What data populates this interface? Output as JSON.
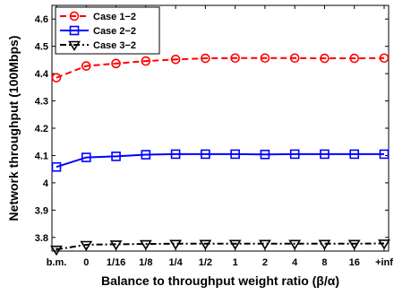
{
  "chart_data": {
    "type": "line",
    "categories": [
      "b.m.",
      "0",
      "1/16",
      "1/8",
      "1/4",
      "1/2",
      "1",
      "2",
      "4",
      "8",
      "16",
      "+inf"
    ],
    "ylabel": "Network throughput (100Mbps)",
    "xlabel": "Balance to throughput weight ratio (β/α)",
    "ylim": [
      3.75,
      4.65
    ],
    "yticks": [
      "3.8",
      "3.9",
      "4",
      "4.1",
      "4.2",
      "4.3",
      "4.4",
      "4.5",
      "4.6"
    ],
    "legend_position": "top-left",
    "series": [
      {
        "name": "Case 1−2",
        "color": "#ff0000",
        "marker": "circle",
        "line": "dashed",
        "values": [
          4.385,
          4.428,
          4.437,
          4.446,
          4.452,
          4.456,
          4.457,
          4.457,
          4.457,
          4.456,
          4.456,
          4.457
        ]
      },
      {
        "name": "Case 2−2",
        "color": "#0000ff",
        "marker": "square",
        "line": "solid",
        "values": [
          4.058,
          4.093,
          4.097,
          4.103,
          4.105,
          4.105,
          4.105,
          4.104,
          4.105,
          4.105,
          4.105,
          4.105
        ]
      },
      {
        "name": "Case 3−2",
        "color": "#000000",
        "marker": "triangle-down",
        "line": "dashdot",
        "values": [
          3.756,
          3.773,
          3.775,
          3.776,
          3.777,
          3.777,
          3.777,
          3.777,
          3.777,
          3.777,
          3.777,
          3.778
        ]
      }
    ]
  }
}
